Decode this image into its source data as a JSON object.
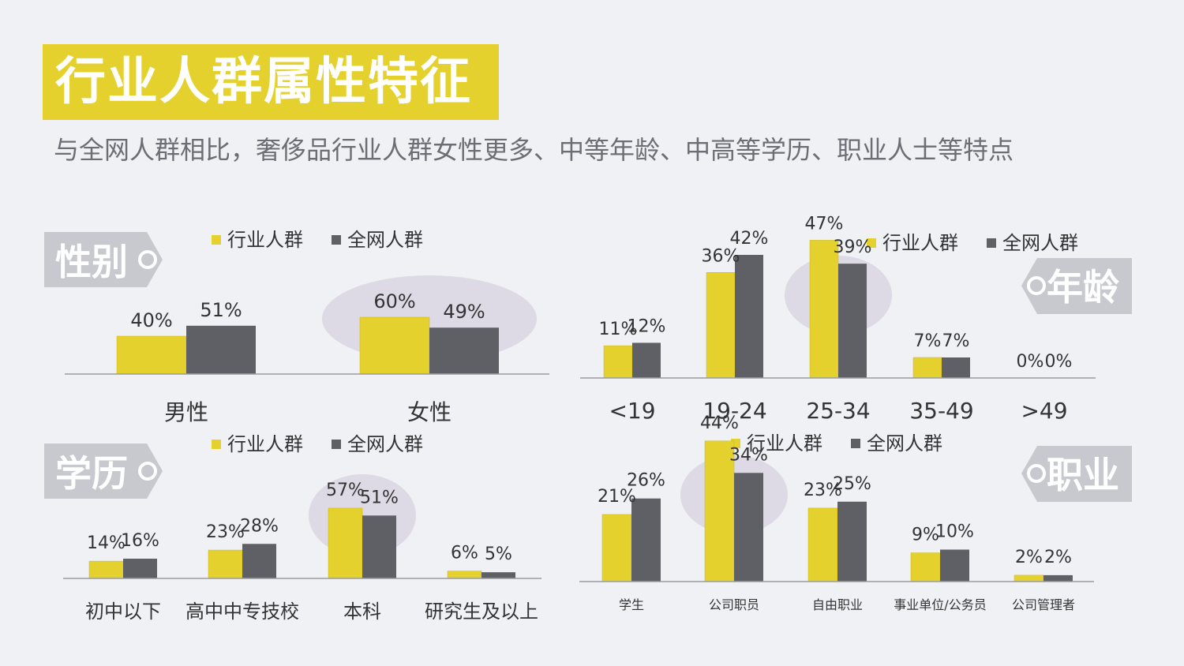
{
  "title": "行业人群属性特征",
  "subtitle": "与全网人群相比，奢侈品行业人群女性更多、中等年龄、中高等学历、职业人士等特点",
  "colors": {
    "industry": "#e5d12e",
    "all": "#5f6065",
    "tag_bg": "#c7c9ce",
    "highlight": "#d9d5e2",
    "axis": "#9a9ca0"
  },
  "panels": {
    "gender": {
      "tag": "性别"
    },
    "age": {
      "tag": "年龄"
    },
    "education": {
      "tag": "学历"
    },
    "occupation": {
      "tag": "职业"
    }
  },
  "chart_data": [
    {
      "id": "gender",
      "type": "bar",
      "categories": [
        "男性",
        "女性"
      ],
      "series": [
        {
          "name": "行业人群",
          "values": [
            40,
            60
          ],
          "labels": [
            "40%",
            "60%"
          ]
        },
        {
          "name": "全网人群",
          "values": [
            51,
            49
          ],
          "labels": [
            "51%",
            "49%"
          ]
        }
      ],
      "highlight": "女性",
      "legend": "top",
      "ylim": [
        0,
        100
      ]
    },
    {
      "id": "age",
      "type": "bar",
      "categories": [
        "<19",
        "19-24",
        "25-34",
        "35-49",
        ">49"
      ],
      "series": [
        {
          "name": "行业人群",
          "values": [
            11,
            36,
            47,
            7,
            0
          ],
          "labels": [
            "11%",
            "36%",
            "47%",
            "7%",
            "0%"
          ]
        },
        {
          "name": "全网人群",
          "values": [
            12,
            42,
            39,
            7,
            0
          ],
          "labels": [
            "12%",
            "42%",
            "39%",
            "7%",
            "0%"
          ]
        }
      ],
      "highlight": "25-34",
      "legend": "top-right",
      "ylim": [
        0,
        70
      ]
    },
    {
      "id": "education",
      "type": "bar",
      "categories": [
        "初中以下",
        "高中中专技校",
        "本科",
        "研究生及以上"
      ],
      "series": [
        {
          "name": "行业人群",
          "values": [
            14,
            23,
            57,
            6
          ],
          "labels": [
            "14%",
            "23%",
            "57%",
            "6%"
          ]
        },
        {
          "name": "全网人群",
          "values": [
            16,
            28,
            51,
            5
          ],
          "labels": [
            "16%",
            "28%",
            "51%",
            "5%"
          ]
        }
      ],
      "highlight": "本科",
      "legend": "top",
      "ylim": [
        0,
        80
      ]
    },
    {
      "id": "occupation",
      "type": "bar",
      "categories": [
        "学生",
        "公司职员",
        "自由职业",
        "事业单位/公务员",
        "公司管理者"
      ],
      "series": [
        {
          "name": "行业人群",
          "values": [
            21,
            44,
            23,
            9,
            2
          ],
          "labels": [
            "21%",
            "44%",
            "23%",
            "9%",
            "2%"
          ]
        },
        {
          "name": "全网人群",
          "values": [
            26,
            34,
            25,
            10,
            2
          ],
          "labels": [
            "26%",
            "34%",
            "25%",
            "10%",
            "2%"
          ]
        }
      ],
      "highlight": "公司职员",
      "legend": "top",
      "ylim": [
        0,
        60
      ]
    }
  ]
}
